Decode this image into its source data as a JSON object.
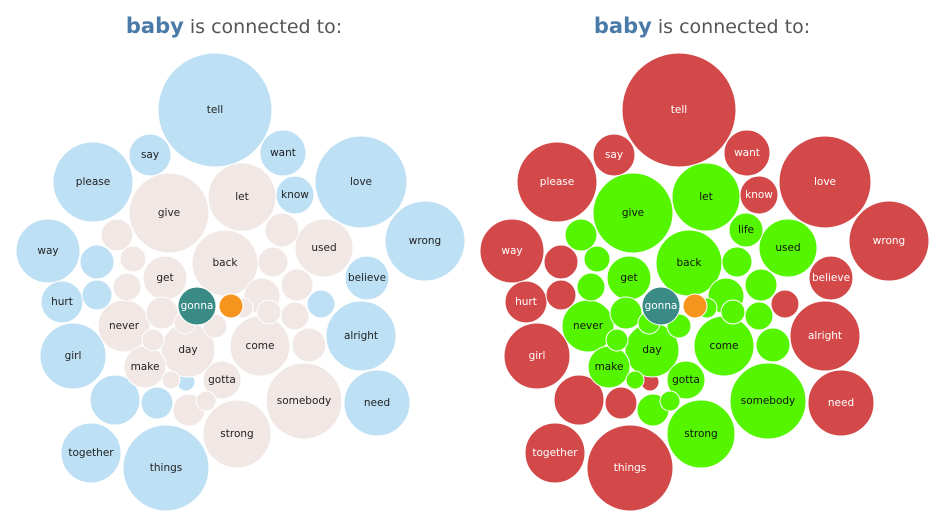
{
  "panels": [
    {
      "title_keyword": "baby",
      "title_rest": "is connected to:",
      "style": "muted"
    },
    {
      "title_keyword": "baby",
      "title_rest": "is connected to:",
      "style": "vivid"
    }
  ],
  "categories": {
    "outer": {
      "muted": "#bde0f5",
      "vivid": "#d34848",
      "label_muted": "#222222",
      "label_vivid": "#ffffff"
    },
    "inner": {
      "muted": "#f1e7e5",
      "vivid": "#55f500",
      "label_muted": "#222222",
      "label_vivid": "#111111"
    },
    "focus": {
      "muted": "#3a8b86",
      "vivid": "#3a8b86",
      "label_muted": "#ffffff",
      "label_vivid": "#ffffff"
    },
    "focus_partner": {
      "muted": "#f7941d",
      "vivid": "#f7941d"
    }
  },
  "bubbles": [
    {
      "label": "tell",
      "cat": "outer"
    },
    {
      "label": "say",
      "cat": "outer"
    },
    {
      "label": "want",
      "cat": "outer"
    },
    {
      "label": "please",
      "cat": "outer"
    },
    {
      "label": "know",
      "cat": "outer"
    },
    {
      "label": "love",
      "cat": "outer"
    },
    {
      "label": "wrong",
      "cat": "outer"
    },
    {
      "label": "way",
      "cat": "outer"
    },
    {
      "label": "believe",
      "cat": "outer"
    },
    {
      "label": "hurt",
      "cat": "outer"
    },
    {
      "label": "alright",
      "cat": "outer"
    },
    {
      "label": "girl",
      "cat": "outer"
    },
    {
      "label": "need",
      "cat": "outer"
    },
    {
      "label": "together",
      "cat": "outer"
    },
    {
      "label": "things",
      "cat": "outer"
    },
    {
      "label": "",
      "cat": "outer"
    },
    {
      "label": "",
      "cat": "outer"
    },
    {
      "label": "",
      "cat": "outer"
    },
    {
      "label": "",
      "cat": "outer"
    },
    {
      "label": "",
      "cat": "outer"
    },
    {
      "label": "",
      "cat": "outer"
    },
    {
      "label": "let",
      "cat": "inner"
    },
    {
      "label": "give",
      "cat": "inner"
    },
    {
      "label": "back",
      "cat": "inner"
    },
    {
      "label": "used",
      "cat": "inner"
    },
    {
      "label": "get",
      "cat": "inner"
    },
    {
      "label": "never",
      "cat": "inner"
    },
    {
      "label": "day",
      "cat": "inner"
    },
    {
      "label": "come",
      "cat": "inner"
    },
    {
      "label": "make",
      "cat": "inner"
    },
    {
      "label": "gotta",
      "cat": "inner"
    },
    {
      "label": "somebody",
      "cat": "inner"
    },
    {
      "label": "strong",
      "cat": "inner"
    },
    {
      "label": "",
      "cat": "inner",
      "vivid_label": "life"
    },
    {
      "label": "",
      "cat": "inner"
    },
    {
      "label": "",
      "cat": "inner"
    },
    {
      "label": "",
      "cat": "inner"
    },
    {
      "label": "",
      "cat": "inner"
    },
    {
      "label": "",
      "cat": "inner"
    },
    {
      "label": "",
      "cat": "inner"
    },
    {
      "label": "",
      "cat": "inner"
    },
    {
      "label": "",
      "cat": "inner"
    },
    {
      "label": "",
      "cat": "inner"
    },
    {
      "label": "",
      "cat": "inner"
    },
    {
      "label": "",
      "cat": "inner"
    },
    {
      "label": "",
      "cat": "inner"
    },
    {
      "label": "",
      "cat": "inner"
    },
    {
      "label": "",
      "cat": "inner"
    },
    {
      "label": "",
      "cat": "inner"
    },
    {
      "label": "",
      "cat": "inner"
    },
    {
      "label": "",
      "cat": "inner"
    },
    {
      "label": "gonna",
      "cat": "focus"
    },
    {
      "label": "",
      "cat": "focus_partner"
    }
  ]
}
